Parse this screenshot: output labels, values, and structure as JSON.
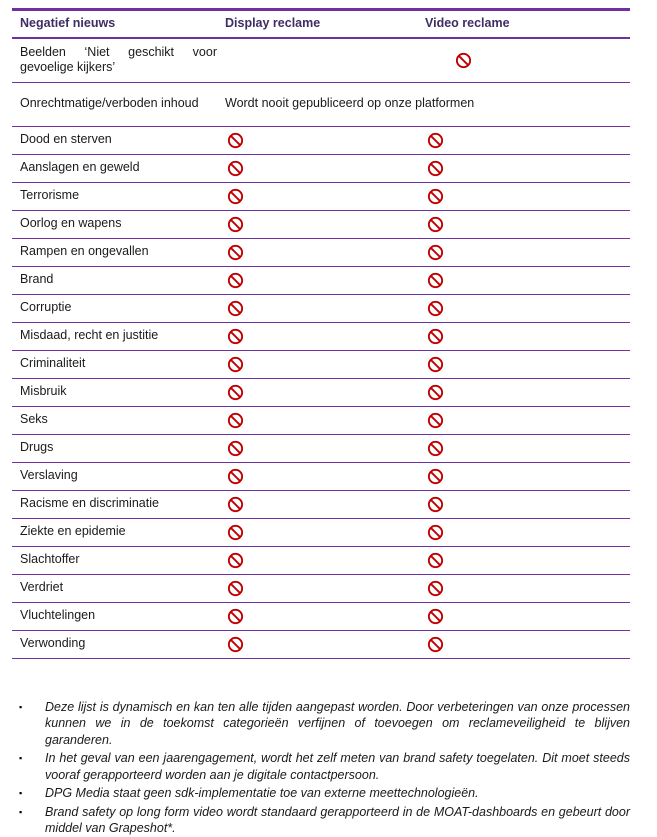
{
  "colors": {
    "purple": "#7030A0",
    "header_text": "#3E2E63",
    "red": "#C00000",
    "text": "#1A1A1A"
  },
  "table": {
    "col_headers": [
      "Negatief nieuws",
      "Display reclame",
      "Video reclame"
    ],
    "row_beelden": {
      "label": "Beelden ‘Niet geschikt voor gevoelige kijkers’"
    },
    "row_onrechtmatig": {
      "label": "Onrechtmatige/verboden inhoud",
      "note": "Wordt nooit gepubliceerd op onze platformen"
    },
    "rows": [
      "Dood en sterven",
      "Aanslagen en geweld",
      "Terrorisme",
      "Oorlog en wapens",
      "Rampen en ongevallen",
      "Brand",
      "Corruptie",
      "Misdaad, recht en justitie",
      "Criminaliteit",
      "Misbruik",
      "Seks",
      "Drugs",
      "Verslaving",
      "Racisme en discriminatie",
      "Ziekte en epidemie",
      "Slachtoffer",
      "Verdriet",
      "Vluchtelingen",
      "Verwonding"
    ]
  },
  "footnotes": [
    "Deze lijst is dynamisch en kan ten alle tijden aangepast worden. Door verbeteringen van onze processen kunnen we in de toekomst categorieën verfijnen of toevoegen om reclameveiligheid te blijven garanderen.",
    "In het geval van een jaarengagement, wordt het zelf meten van brand safety toegelaten. Dit moet steeds vooraf gerapporteerd worden aan je digitale contactpersoon.",
    "DPG Media staat geen sdk-implementatie toe van externe meettechnologieën.",
    "Brand safety op long form video wordt standaard gerapporteerd in de MOAT-dashboards en gebeurt door middel van Grapeshot*."
  ]
}
